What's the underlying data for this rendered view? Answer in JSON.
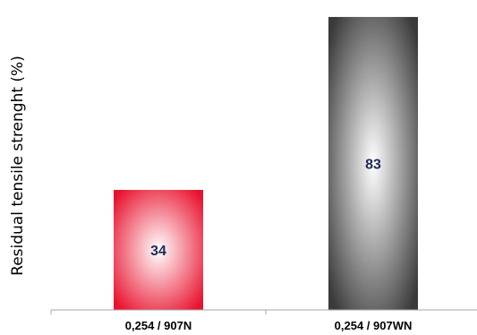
{
  "chart_data": {
    "type": "bar",
    "title": "",
    "xlabel": "",
    "ylabel": "Residual tensile strenght (%)",
    "categories": [
      "0,254 / 907N",
      "0,254 / 907WN"
    ],
    "values": [
      34,
      83
    ],
    "data_labels": [
      "34",
      "83"
    ],
    "ylim": [
      0,
      84
    ],
    "grid": false,
    "legend": "none",
    "colors": {
      "bar1_center": "#ffffff",
      "bar1_edge": "#e8122e",
      "bar2_center": "#ffffff",
      "bar2_edge": "#3a3a3a",
      "axis": "#a6a6a6",
      "data_label": "#1f2a5a"
    }
  }
}
